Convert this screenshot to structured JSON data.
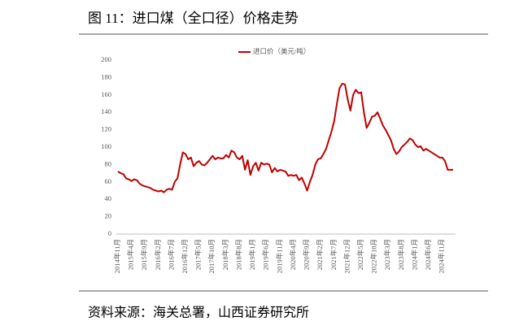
{
  "chart_data": {
    "type": "line",
    "title": "图 11：进口煤（全口径）价格走势",
    "source": "资料来源：海关总署，山西证券研究所",
    "categories": [
      "2014年11月",
      null,
      null,
      null,
      null,
      "2015年4月",
      null,
      null,
      null,
      null,
      "2015年9月",
      null,
      null,
      null,
      null,
      "2016年2月",
      null,
      null,
      null,
      null,
      "2016年7月",
      null,
      null,
      null,
      null,
      "2016年12月",
      null,
      null,
      null,
      null,
      "2017年5月",
      null,
      null,
      null,
      null,
      "2017年10月",
      null,
      null,
      null,
      null,
      "2018年3月",
      null,
      null,
      null,
      null,
      "2018年8月",
      null,
      null,
      null,
      null,
      "2019年1月",
      null,
      null,
      null,
      null,
      "2019年6月",
      null,
      null,
      null,
      null,
      "2019年11月",
      null,
      null,
      null,
      null,
      "2020年4月",
      null,
      null,
      null,
      null,
      "2020年9月",
      null,
      null,
      null,
      null,
      "2021年2月",
      null,
      null,
      null,
      null,
      "2021年7月",
      null,
      null,
      null,
      null,
      "2021年12月",
      null,
      null,
      null,
      null,
      "2022年5月",
      null,
      null,
      null,
      null,
      "2022年10月",
      null,
      null,
      null,
      null,
      "2023年3月",
      null,
      null,
      null,
      null,
      "2023年8月",
      null,
      null,
      null,
      null,
      "2024年1月",
      null,
      null,
      null,
      null,
      "2024年6月",
      null,
      null,
      null,
      null,
      "2024年11月",
      null,
      null,
      null,
      null
    ],
    "series": [
      {
        "name": "进口价（美元/吨）",
        "color": "#c00000",
        "values": [
          72,
          70,
          69,
          64,
          63,
          61,
          63,
          62,
          58,
          56,
          55,
          54,
          53,
          51,
          50,
          49,
          50,
          48,
          51,
          52,
          51,
          60,
          64,
          80,
          94,
          92,
          86,
          88,
          78,
          82,
          84,
          80,
          79,
          82,
          86,
          90,
          86,
          88,
          87,
          87,
          91,
          88,
          96,
          94,
          88,
          86,
          90,
          74,
          85,
          68,
          78,
          82,
          73,
          82,
          80,
          81,
          80,
          71,
          76,
          72,
          74,
          73,
          72,
          67,
          68,
          67,
          68,
          62,
          65,
          58,
          50,
          60,
          68,
          80,
          86,
          87,
          92,
          98,
          108,
          118,
          130,
          150,
          168,
          173,
          172,
          155,
          142,
          160,
          166,
          162,
          163,
          140,
          122,
          128,
          135,
          136,
          140,
          133,
          125,
          120,
          114,
          108,
          98,
          92,
          95,
          100,
          103,
          106,
          110,
          108,
          103,
          100,
          101,
          96,
          98,
          96,
          94,
          92,
          90,
          88,
          88,
          84,
          74,
          74,
          74
        ]
      }
    ],
    "ylim": [
      0,
      200
    ],
    "yticks": [
      0,
      20,
      40,
      60,
      80,
      100,
      120,
      140,
      160,
      180,
      200
    ],
    "legend": "top",
    "grid": false
  }
}
